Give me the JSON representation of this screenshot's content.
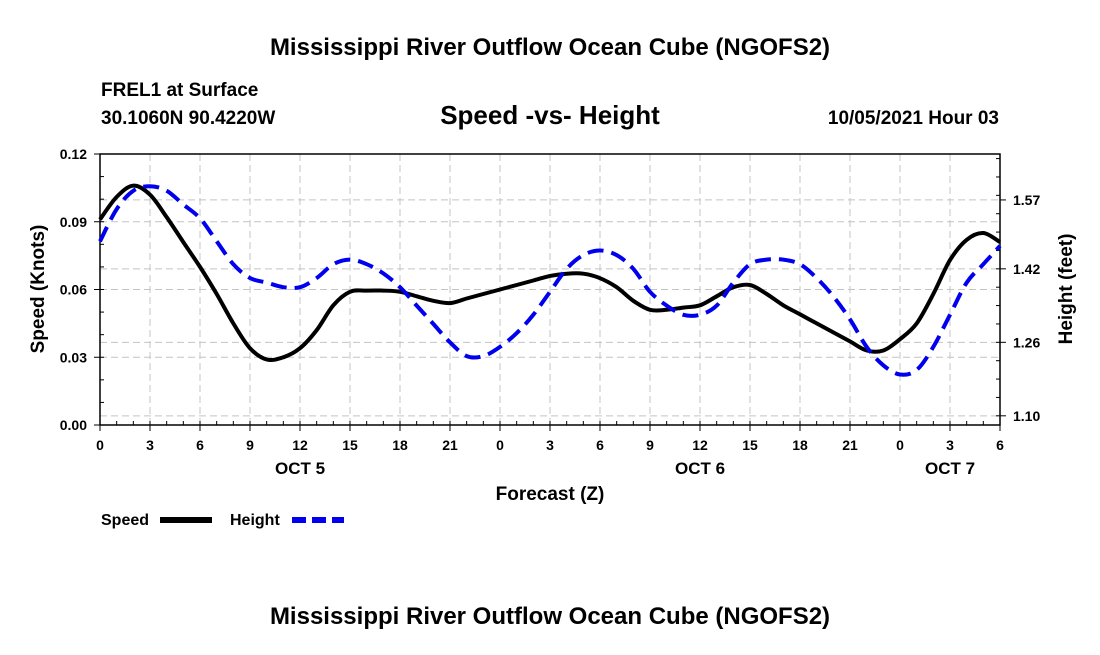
{
  "page": {
    "title_top": "Mississippi River Outflow Ocean Cube (NGOFS2)",
    "title_bottom": "Mississippi River Outflow Ocean Cube (NGOFS2)"
  },
  "chart_data": {
    "type": "line",
    "title": "Speed -vs- Height",
    "station": "FREL1 at Surface",
    "location": "30.1060N  90.4220W",
    "timestamp": "10/05/2021 Hour 03",
    "xlabel": "Forecast (Z)",
    "ylabel": "Speed (Knots)",
    "y2label": "Height (feet)",
    "x_range": [
      0,
      54
    ],
    "xticks": [
      {
        "x": 0,
        "label": "0"
      },
      {
        "x": 3,
        "label": "3"
      },
      {
        "x": 6,
        "label": "6"
      },
      {
        "x": 9,
        "label": "9"
      },
      {
        "x": 12,
        "label": "12"
      },
      {
        "x": 15,
        "label": "15"
      },
      {
        "x": 18,
        "label": "18"
      },
      {
        "x": 21,
        "label": "21"
      },
      {
        "x": 24,
        "label": "0"
      },
      {
        "x": 27,
        "label": "3"
      },
      {
        "x": 30,
        "label": "6"
      },
      {
        "x": 33,
        "label": "9"
      },
      {
        "x": 36,
        "label": "12"
      },
      {
        "x": 39,
        "label": "15"
      },
      {
        "x": 42,
        "label": "18"
      },
      {
        "x": 45,
        "label": "21"
      },
      {
        "x": 48,
        "label": "0"
      },
      {
        "x": 51,
        "label": "3"
      },
      {
        "x": 54,
        "label": "6"
      }
    ],
    "day_labels": [
      {
        "x": 12,
        "label": "OCT 5"
      },
      {
        "x": 36,
        "label": "OCT 6"
      },
      {
        "x": 51,
        "label": "OCT 7"
      }
    ],
    "y_range": [
      0,
      0.12
    ],
    "yticks": [
      {
        "v": 0,
        "label": "0.00"
      },
      {
        "v": 0.03,
        "label": "0.03"
      },
      {
        "v": 0.06,
        "label": "0.06"
      },
      {
        "v": 0.09,
        "label": "0.09"
      },
      {
        "v": 0.12,
        "label": "0.12"
      }
    ],
    "y2_range": [
      1.08,
      1.67
    ],
    "y2ticks": [
      {
        "v": 1.1,
        "label": "1.10"
      },
      {
        "v": 1.26,
        "label": "1.26"
      },
      {
        "v": 1.42,
        "label": "1.42"
      },
      {
        "v": 1.57,
        "label": "1.57"
      }
    ],
    "grid": true,
    "legend": {
      "position": "bottom-left",
      "speed_label": "Speed",
      "height_label": "Height"
    },
    "series": [
      {
        "name": "Speed",
        "axis": "left",
        "color": "#000000",
        "dash": "solid",
        "x": [
          0,
          1,
          2,
          3,
          4,
          5,
          6,
          7,
          8,
          9,
          10,
          11,
          12,
          13,
          14,
          15,
          16,
          17,
          18,
          19,
          20,
          21,
          22,
          23,
          24,
          25,
          26,
          27,
          28,
          29,
          30,
          31,
          32,
          33,
          34,
          35,
          36,
          37,
          38,
          39,
          40,
          41,
          42,
          43,
          44,
          45,
          46,
          47,
          48,
          49,
          50,
          51,
          52,
          53,
          54
        ],
        "values": [
          0.091,
          0.101,
          0.106,
          0.102,
          0.092,
          0.081,
          0.07,
          0.058,
          0.045,
          0.034,
          0.029,
          0.03,
          0.034,
          0.042,
          0.053,
          0.059,
          0.0595,
          0.0595,
          0.059,
          0.057,
          0.055,
          0.054,
          0.056,
          0.058,
          0.06,
          0.062,
          0.064,
          0.066,
          0.067,
          0.067,
          0.065,
          0.061,
          0.055,
          0.051,
          0.051,
          0.052,
          0.053,
          0.057,
          0.061,
          0.062,
          0.058,
          0.053,
          0.049,
          0.045,
          0.041,
          0.037,
          0.033,
          0.033,
          0.038,
          0.045,
          0.058,
          0.073,
          0.082,
          0.085,
          0.081
        ]
      },
      {
        "name": "Height",
        "axis": "right",
        "color": "#0000ee",
        "dash": "dashed",
        "x": [
          0,
          1,
          2,
          3,
          4,
          5,
          6,
          7,
          8,
          9,
          10,
          11,
          12,
          13,
          14,
          15,
          16,
          17,
          18,
          19,
          20,
          21,
          22,
          23,
          24,
          25,
          26,
          27,
          28,
          29,
          30,
          31,
          32,
          33,
          34,
          35,
          36,
          37,
          38,
          39,
          40,
          41,
          42,
          43,
          44,
          45,
          46,
          47,
          48,
          49,
          50,
          51,
          52,
          53,
          54
        ],
        "values": [
          1.48,
          1.55,
          1.59,
          1.6,
          1.59,
          1.56,
          1.53,
          1.48,
          1.43,
          1.4,
          1.39,
          1.38,
          1.38,
          1.4,
          1.43,
          1.44,
          1.43,
          1.41,
          1.38,
          1.34,
          1.3,
          1.26,
          1.23,
          1.23,
          1.25,
          1.28,
          1.32,
          1.37,
          1.42,
          1.45,
          1.46,
          1.45,
          1.42,
          1.37,
          1.34,
          1.32,
          1.32,
          1.34,
          1.39,
          1.43,
          1.44,
          1.44,
          1.43,
          1.4,
          1.36,
          1.31,
          1.25,
          1.21,
          1.19,
          1.2,
          1.25,
          1.32,
          1.39,
          1.43,
          1.47
        ]
      }
    ]
  }
}
